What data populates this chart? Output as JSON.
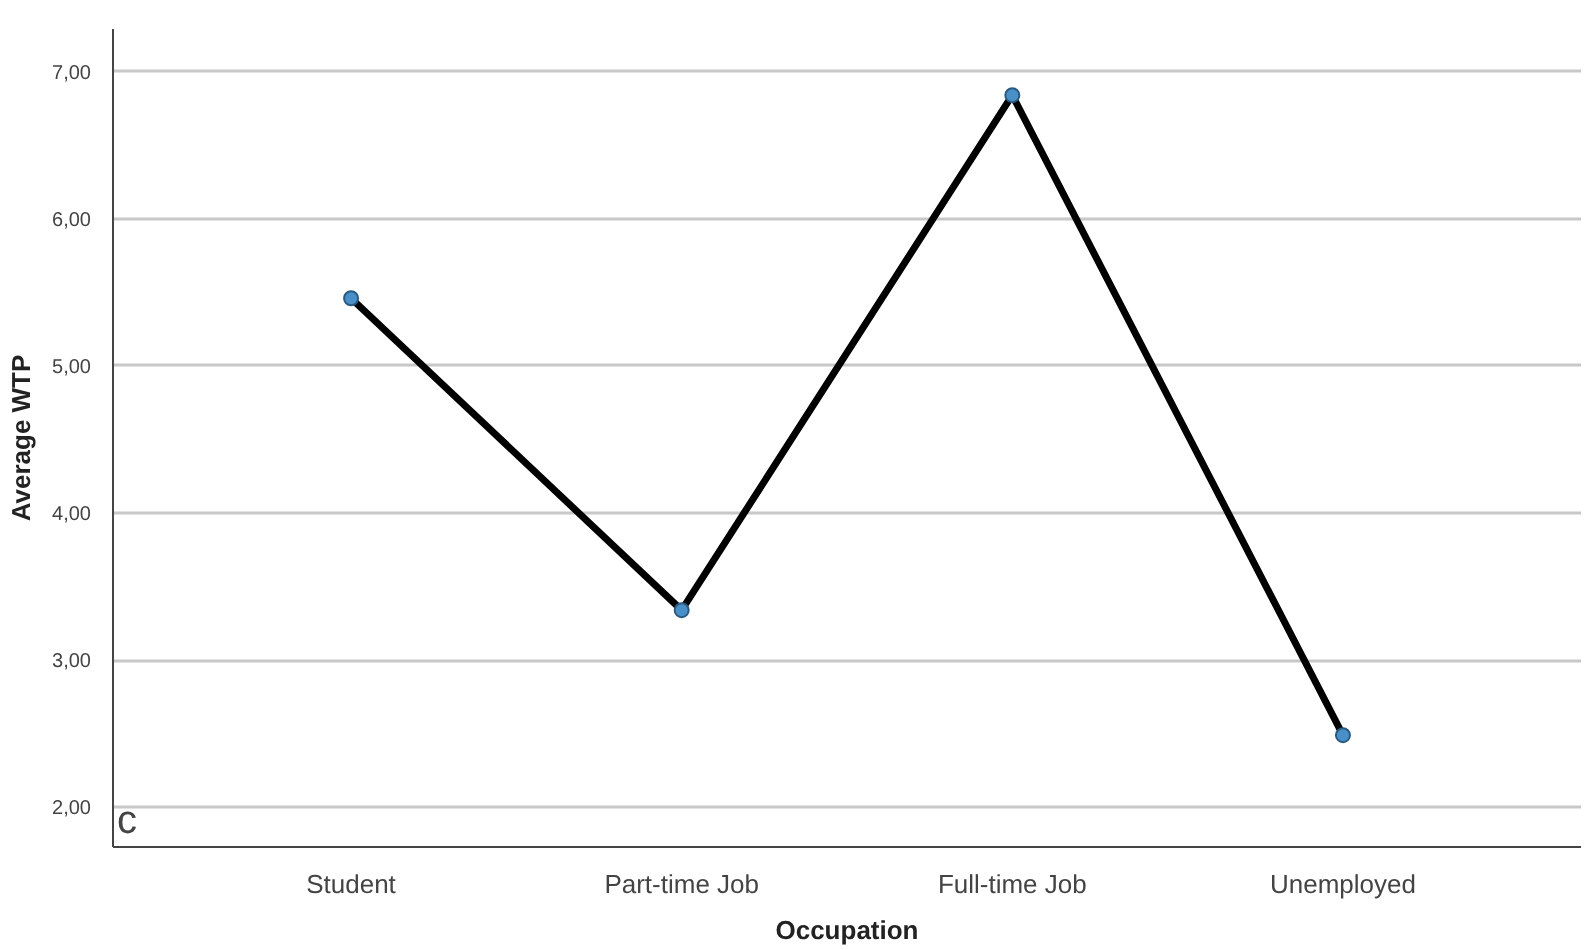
{
  "chart_data": {
    "type": "line",
    "xlabel": "Occupation",
    "ylabel": "Average WTP",
    "categories": [
      "Student",
      "Part-time Job",
      "Full-time Job",
      "Unemployed"
    ],
    "series": [
      {
        "color": "#000000",
        "values": [
          5.46,
          3.34,
          6.84,
          2.49
        ]
      }
    ],
    "marker": "circle",
    "line_style": "solid",
    "ylim": [
      1.73,
      7.29
    ],
    "yticks": [
      {
        "value": 2,
        "label": "2,00"
      },
      {
        "value": 3,
        "label": "3,00"
      },
      {
        "value": 4,
        "label": "4,00"
      },
      {
        "value": 5,
        "label": "5,00"
      },
      {
        "value": 6,
        "label": "6,00"
      },
      {
        "value": 7,
        "label": "7,00"
      }
    ],
    "grid": "y",
    "annotations": [
      "c"
    ]
  }
}
